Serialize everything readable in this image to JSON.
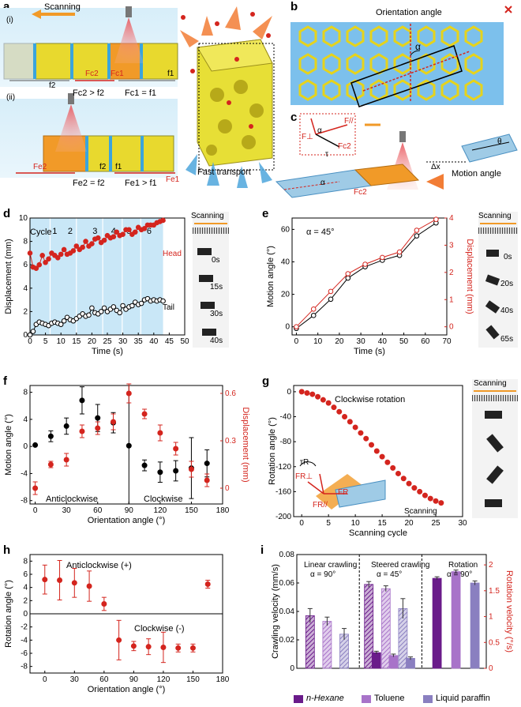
{
  "figure": {
    "panel_labels": [
      "a",
      "b",
      "c",
      "d",
      "e",
      "f",
      "g",
      "h",
      "i"
    ]
  },
  "panel_a": {
    "scanning": "Scanning",
    "sub_i": "(i)",
    "sub_ii": "(ii)",
    "eq_i_left": "Fc2 > f2",
    "eq_i_right": "Fc1 = f1",
    "eq_ii_left": "Fe2 = f2",
    "eq_ii_right": "Fe1 > f1",
    "labels_i": [
      "f2",
      "Fc2",
      "Fc1",
      "f1"
    ],
    "labels_ii": [
      "Fe2",
      "f2",
      "f1",
      "Fe1"
    ],
    "fast_transport": "Fast transport"
  },
  "panel_b": {
    "title": "Orientation angle",
    "alpha": "α"
  },
  "panel_c": {
    "forces": [
      "F//",
      "F⊥",
      "α",
      "Fc2",
      "τ"
    ],
    "motion_angle": "Motion angle",
    "theta": "θ",
    "dx": "Δx",
    "alpha": "α",
    "fc2": "Fc2"
  },
  "panel_d": {
    "xlabel": "Time (s)",
    "ylabel": "Displacement (mm)",
    "head": "Head",
    "tail": "Tail",
    "cycle_label": "Cycle",
    "cycles": [
      "1",
      "2",
      "3",
      "4",
      "5",
      "6"
    ],
    "photo_title": "Scanning",
    "photo_times": [
      "0s",
      "15s",
      "30s",
      "40s"
    ]
  },
  "panel_e": {
    "annotation": "α = 45°",
    "xlabel": "Time (s)",
    "ylabel_left": "Motion angle (°)",
    "ylabel_right": "Displacement (mm)",
    "photo_title": "Scanning",
    "photo_times": [
      "0s",
      "20s",
      "40s",
      "65s"
    ]
  },
  "panel_f": {
    "xlabel": "Orientation angle (°)",
    "ylabel_left": "Motion angle (°)",
    "ylabel_right": "Displacement (mm)",
    "left_region": "Anticlockwise",
    "right_region": "Clockwise"
  },
  "panel_g": {
    "annotation": "Clockwise rotation",
    "xlabel": "Scanning cycle",
    "ylabel": "Rotation angle (°)",
    "inset_labels": [
      "τR",
      "FR⊥",
      "FR",
      "FR//",
      "Scanning"
    ],
    "photo_title": "Scanning"
  },
  "panel_h": {
    "xlabel": "Orientation angle (°)",
    "ylabel": "Rotation angle (°)",
    "anticlockwise": "Anticlockwise (+)",
    "clockwise": "Clockwise (-)"
  },
  "panel_i": {
    "ylabel_left": "Crawling velocity (mm/s)",
    "ylabel_right": "Rotation velocity (°/s)",
    "groups": [
      {
        "title": "Linear crawling",
        "alpha": "α = 90°"
      },
      {
        "title": "Steered crawling",
        "alpha": "α = 45°"
      },
      {
        "title": "Rotation",
        "alpha": "α = 90°"
      }
    ],
    "legend": [
      "n-Hexane",
      "Toluene",
      "Liquid paraffin"
    ]
  },
  "chart_data": [
    {
      "type": "scatter",
      "panel": "d",
      "xlabel": "Time (s)",
      "ylabel": "Displacement (mm)",
      "xlim": [
        0,
        50
      ],
      "ylim": [
        0,
        10
      ],
      "xticks": [
        0,
        5,
        10,
        15,
        20,
        25,
        30,
        35,
        40,
        45,
        50
      ],
      "yticks": [
        0,
        2,
        4,
        6,
        8,
        10
      ],
      "series": [
        {
          "name": "Head",
          "color": "#d4251e",
          "x": [
            0,
            1,
            2,
            3,
            4,
            5,
            6,
            7,
            8,
            9,
            10,
            11,
            12,
            13,
            14,
            15,
            16,
            17,
            18,
            19,
            20,
            21,
            22,
            23,
            24,
            25,
            26,
            27,
            28,
            29,
            30,
            31,
            32,
            33,
            34,
            35,
            36,
            37,
            38,
            39,
            40,
            41,
            42,
            43
          ],
          "y": [
            7.0,
            5.8,
            5.7,
            6.0,
            6.8,
            6.2,
            6.5,
            7.0,
            6.8,
            6.6,
            6.9,
            7.3,
            6.9,
            7.0,
            7.2,
            7.6,
            7.3,
            7.5,
            8.0,
            7.6,
            7.8,
            8.2,
            8.3,
            7.9,
            8.1,
            8.5,
            8.3,
            8.4,
            8.8,
            8.5,
            8.6,
            9.0,
            9.0,
            8.6,
            8.8,
            9.2,
            9.0,
            9.1,
            9.4,
            9.4,
            9.4,
            9.6,
            9.7,
            9.8
          ]
        },
        {
          "name": "Tail",
          "color": "#000000",
          "x": [
            0,
            1,
            2,
            3,
            4,
            5,
            6,
            7,
            8,
            9,
            10,
            11,
            12,
            13,
            14,
            15,
            16,
            17,
            18,
            19,
            20,
            21,
            22,
            23,
            24,
            25,
            26,
            27,
            28,
            29,
            30,
            31,
            32,
            33,
            34,
            35,
            36,
            37,
            38,
            39,
            40,
            41,
            42,
            43
          ],
          "y": [
            0.0,
            0.3,
            0.9,
            1.1,
            1.0,
            0.9,
            0.8,
            1.0,
            1.1,
            1.0,
            0.9,
            1.2,
            1.5,
            1.3,
            1.2,
            1.4,
            1.6,
            1.8,
            1.6,
            1.7,
            2.3,
            1.9,
            1.8,
            2.0,
            2.3,
            2.0,
            2.2,
            2.4,
            2.1,
            1.9,
            2.5,
            2.2,
            2.4,
            2.5,
            2.8,
            2.6,
            2.7,
            3.0,
            3.1,
            2.9,
            3.0,
            2.9,
            3.0,
            2.9
          ]
        }
      ],
      "bands": [
        [
          0,
          5
        ],
        [
          5,
          10
        ],
        [
          10,
          15
        ],
        [
          15,
          20
        ],
        [
          20,
          25
        ],
        [
          25,
          30
        ],
        [
          30,
          35
        ],
        [
          35,
          40
        ],
        [
          40,
          43
        ]
      ]
    },
    {
      "type": "line",
      "panel": "e",
      "xlabel": "Time (s)",
      "ylabel": "Motion angle (°)",
      "ylabel_right": "Displacement (mm)",
      "xlim": [
        -2,
        70
      ],
      "ylim": [
        -5,
        67
      ],
      "ylim_right": [
        -0.3,
        4
      ],
      "xticks": [
        0,
        10,
        20,
        30,
        40,
        50,
        60,
        70
      ],
      "yticks": [
        0,
        20,
        40,
        60
      ],
      "yticks_right": [
        0,
        1,
        2,
        3,
        4
      ],
      "series": [
        {
          "name": "Motion angle",
          "color": "#000000",
          "x": [
            0,
            8,
            16,
            24,
            32,
            40,
            48,
            56,
            65
          ],
          "y": [
            -1,
            7,
            17,
            30,
            37,
            41,
            44,
            56,
            64
          ]
        },
        {
          "name": "Displacement",
          "color": "#d4251e",
          "axis": "right",
          "x": [
            0,
            8,
            16,
            24,
            32,
            40,
            48,
            56,
            65
          ],
          "y": [
            0.0,
            0.65,
            1.3,
            1.95,
            2.3,
            2.55,
            2.75,
            3.55,
            3.95
          ]
        }
      ]
    },
    {
      "type": "scatter",
      "panel": "f",
      "xlabel": "Orientation angle (°)",
      "ylabel": "Motion angle (°)",
      "ylabel_right": "Displacement (mm)",
      "xlim": [
        -5,
        180
      ],
      "ylim": [
        -8.5,
        9
      ],
      "ylim_right": [
        -0.1,
        0.65
      ],
      "xticks": [
        0,
        30,
        60,
        90,
        120,
        150,
        180
      ],
      "yticks": [
        -8,
        -4,
        0,
        4,
        8
      ],
      "yticks_right": [
        0.0,
        0.3,
        0.6
      ],
      "series": [
        {
          "name": "Motion angle",
          "color": "#000000",
          "x": [
            0,
            15,
            30,
            45,
            60,
            75,
            90,
            105,
            120,
            135,
            150,
            165
          ],
          "y": [
            0.2,
            1.5,
            3.0,
            6.8,
            4.2,
            3.5,
            0.1,
            -2.8,
            -3.8,
            -3.6,
            -3.2,
            -2.5
          ],
          "err": [
            0,
            0.8,
            1.2,
            2.0,
            2.0,
            1.5,
            0,
            0.8,
            1.5,
            1.5,
            4.5,
            2.0
          ]
        },
        {
          "name": "Displacement",
          "color": "#d4251e",
          "axis": "right",
          "x": [
            0,
            15,
            30,
            45,
            60,
            75,
            90,
            105,
            120,
            135,
            150,
            165
          ],
          "y": [
            0.0,
            0.15,
            0.18,
            0.36,
            0.38,
            0.42,
            0.6,
            0.47,
            0.35,
            0.25,
            0.12,
            0.05
          ],
          "err": [
            0.04,
            0.02,
            0.04,
            0.04,
            0.04,
            0.05,
            0.06,
            0.03,
            0.05,
            0.04,
            0.05,
            0.04
          ]
        }
      ]
    },
    {
      "type": "scatter",
      "panel": "g",
      "xlabel": "Scanning cycle",
      "ylabel": "Rotation angle (°)",
      "xlim": [
        -1.5,
        30
      ],
      "ylim": [
        -200,
        10
      ],
      "xticks": [
        0,
        5,
        10,
        15,
        20,
        25,
        30
      ],
      "yticks": [
        0,
        -40,
        -80,
        -120,
        -160,
        -200
      ],
      "series": [
        {
          "name": "Clockwise rotation",
          "color": "#d4251e",
          "x": [
            0,
            1,
            2,
            3,
            4,
            5,
            6,
            7,
            8,
            9,
            10,
            11,
            12,
            13,
            14,
            15,
            16,
            17,
            18,
            19,
            20,
            21,
            22,
            23,
            24,
            25,
            26
          ],
          "y": [
            0,
            -2,
            -4,
            -8,
            -13,
            -18,
            -25,
            -32,
            -40,
            -48,
            -57,
            -66,
            -75,
            -85,
            -95,
            -104,
            -113,
            -122,
            -131,
            -139,
            -147,
            -154,
            -160,
            -166,
            -171,
            -175,
            -178
          ]
        }
      ]
    },
    {
      "type": "scatter",
      "panel": "h",
      "xlabel": "Orientation angle (°)",
      "ylabel": "Rotation angle (°)",
      "xlim": [
        -15,
        180
      ],
      "ylim": [
        -9,
        9
      ],
      "xticks": [
        0,
        30,
        60,
        90,
        120,
        150,
        180
      ],
      "yticks": [
        -8,
        -6,
        -4,
        -2,
        0,
        2,
        4,
        6,
        8
      ],
      "series": [
        {
          "name": "Rotation angle",
          "color": "#d4251e",
          "x": [
            0,
            15,
            30,
            45,
            60,
            75,
            90,
            105,
            120,
            135,
            150,
            165
          ],
          "y": [
            5.2,
            5.1,
            4.7,
            4.2,
            1.5,
            -4.0,
            -4.9,
            -5.0,
            -5.1,
            -5.2,
            -5.2,
            4.5
          ],
          "err": [
            2.2,
            3.0,
            2.2,
            2.3,
            1.0,
            3.0,
            0.7,
            1.2,
            2.3,
            0.6,
            0.6,
            0.6
          ]
        }
      ]
    },
    {
      "type": "bar",
      "panel": "i",
      "ylabel": "Crawling velocity (mm/s)",
      "ylabel_right": "Rotation velocity (°/s)",
      "ylim": [
        0,
        0.08
      ],
      "ylim_right": [
        0,
        2.2
      ],
      "yticks": [
        0.0,
        0.02,
        0.04,
        0.06,
        0.08
      ],
      "yticks_right": [
        0.0,
        0.5,
        1.0,
        1.5,
        2.0
      ],
      "categories": [
        "n-Hexane",
        "Toluene",
        "Liquid paraffin"
      ],
      "colors": [
        "#6a1b8a",
        "#a873c9",
        "#8a7fc0"
      ],
      "groups": [
        {
          "title": "Linear crawling",
          "bars": [
            {
              "value": 0.037,
              "err": 0.005,
              "hatched": true
            },
            {
              "value": 0.033,
              "err": 0.003,
              "hatched": true
            },
            {
              "value": 0.024,
              "err": 0.004,
              "hatched": true
            }
          ]
        },
        {
          "title": "Steered crawling",
          "bars": [
            {
              "value": 0.059,
              "err": 0.002,
              "hatched": true
            },
            {
              "value": 0.011,
              "err": 0.001,
              "hatched": false
            },
            {
              "value": 0.056,
              "err": 0.002,
              "hatched": true
            },
            {
              "value": 0.009,
              "err": 0.001,
              "hatched": false
            },
            {
              "value": 0.042,
              "err": 0.007,
              "hatched": true
            },
            {
              "value": 0.007,
              "err": 0.001,
              "hatched": false
            }
          ]
        },
        {
          "title": "Rotation",
          "axis": "right",
          "bars": [
            {
              "value": 1.74,
              "err": 0.03,
              "hatched": false
            },
            {
              "value": 1.87,
              "err": 0.03,
              "hatched": false
            },
            {
              "value": 1.65,
              "err": 0.04,
              "hatched": false
            }
          ]
        }
      ]
    }
  ]
}
